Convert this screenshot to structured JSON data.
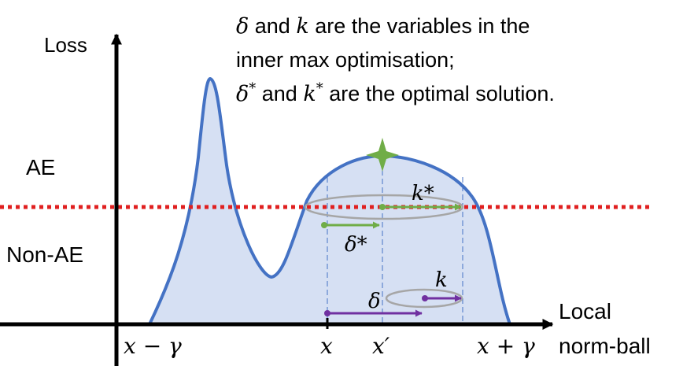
{
  "labels": {
    "y_axis": "Loss",
    "x_axis_line1": "Local",
    "x_axis_line2": "norm-ball",
    "region_above": "AE",
    "region_below": "Non-AE"
  },
  "ticks": {
    "left": "x − γ",
    "center": "x",
    "prime": "x′",
    "right": "x + γ"
  },
  "annotations": {
    "k_star": "k*",
    "delta_star": "δ*",
    "delta": "δ",
    "k": "k"
  },
  "note": {
    "line1_sym1": "δ",
    "line1_mid": " and ",
    "line1_sym2": "k",
    "line1_rest": " are the variables in the",
    "line2": "inner max optimisation;",
    "line3_sym1": "δ",
    "line3_sup1": "*",
    "line3_mid": " and ",
    "line3_sym2": "k",
    "line3_sup2": "*",
    "line3_rest": " are the optimal solution."
  },
  "colors": {
    "curve": "#4472C4",
    "fill": "#D6E0F3",
    "threshold": "#E02020",
    "green": "#70AD47",
    "purple": "#7030A0",
    "ellipse": "#A6A6A6",
    "axis": "#000000",
    "guide": "#4472C4"
  }
}
